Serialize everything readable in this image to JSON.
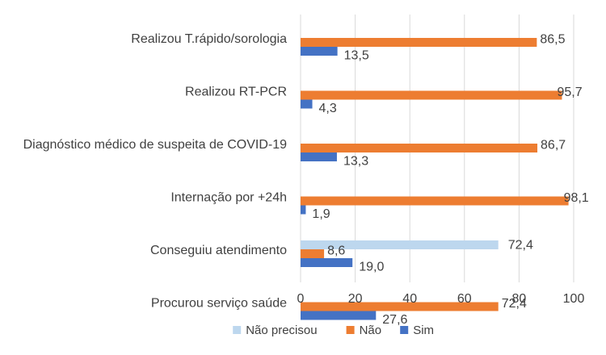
{
  "chart_data": {
    "type": "bar",
    "orientation": "horizontal",
    "title": "",
    "xlabel": "",
    "ylabel": "",
    "xlim": [
      0,
      100
    ],
    "x_ticks": [
      0,
      20,
      40,
      60,
      80,
      100
    ],
    "grid": true,
    "legend_position": "bottom",
    "categories": [
      "Realizou T.rápido/sorologia",
      "Realizou RT-PCR",
      "Diagnóstico médico de suspeita de COVID-19",
      "Internação por +24h",
      "Conseguiu atendimento",
      "Procurou serviço saúde"
    ],
    "series": [
      {
        "name": "Não precisou",
        "color": "#bdd7ee",
        "values": [
          null,
          null,
          null,
          null,
          72.4,
          null
        ],
        "labels": [
          "",
          "",
          "",
          "",
          "72,4",
          ""
        ]
      },
      {
        "name": "Não",
        "color": "#ed7d31",
        "values": [
          86.5,
          95.7,
          86.7,
          98.1,
          8.6,
          72.4
        ],
        "labels": [
          "86,5",
          "95,7",
          "86,7",
          "98,1",
          "8,6",
          "72,4"
        ]
      },
      {
        "name": "Sim",
        "color": "#4472c4",
        "values": [
          13.5,
          4.3,
          13.3,
          1.9,
          19.0,
          27.6
        ],
        "labels": [
          "13,5",
          "4,3",
          "13,3",
          "1,9",
          "19,0",
          "27,6"
        ]
      }
    ]
  }
}
